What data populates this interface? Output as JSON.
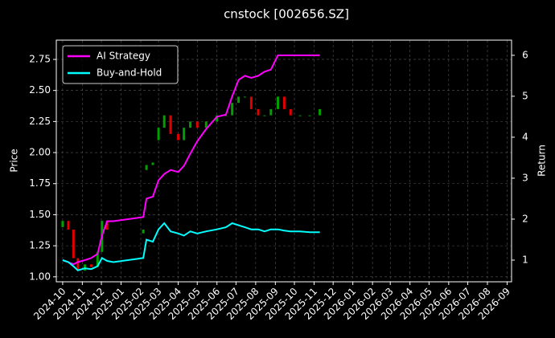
{
  "chart_data": {
    "type": "candlestick",
    "title": "cnstock [002656.SZ]",
    "ylabel": "Price",
    "y2label": "Return",
    "x": [
      "2024-10-01",
      "2024-10-10",
      "2024-10-18",
      "2024-10-25",
      "2024-11-05",
      "2024-11-15",
      "2024-11-25",
      "2024-12-02",
      "2024-12-10",
      "2024-12-20",
      "2025-02-05",
      "2025-02-10",
      "2025-02-20",
      "2025-03-01",
      "2025-03-10",
      "2025-03-20",
      "2025-04-01",
      "2025-04-10",
      "2025-04-20",
      "2025-05-01",
      "2025-05-15",
      "2025-06-01",
      "2025-06-15",
      "2025-06-25",
      "2025-07-05",
      "2025-07-15",
      "2025-07-25",
      "2025-08-05",
      "2025-08-15",
      "2025-08-25",
      "2025-09-05",
      "2025-09-15",
      "2025-09-25",
      "2025-10-10",
      "2025-10-25",
      "2025-11-10"
    ],
    "open": [
      1.4,
      1.45,
      1.38,
      1.15,
      1.05,
      1.1,
      1.08,
      1.2,
      1.45,
      null,
      1.35,
      1.86,
      1.9,
      2.1,
      2.2,
      2.3,
      2.15,
      2.1,
      2.2,
      2.25,
      2.2,
      2.25,
      2.3,
      2.3,
      2.4,
      2.45,
      2.45,
      2.35,
      2.3,
      2.3,
      2.35,
      2.45,
      2.35,
      2.3,
      2.3,
      2.3
    ],
    "close": [
      1.45,
      1.38,
      1.15,
      1.05,
      1.1,
      1.08,
      1.2,
      1.45,
      1.38,
      null,
      1.38,
      1.9,
      1.92,
      2.2,
      2.3,
      2.15,
      2.1,
      2.2,
      2.25,
      2.2,
      2.25,
      2.3,
      2.3,
      2.4,
      2.45,
      2.45,
      2.35,
      2.3,
      2.3,
      2.35,
      2.45,
      2.35,
      2.3,
      2.3,
      2.3,
      2.35
    ],
    "up_color": "#00a000",
    "down_color": "#e00000",
    "series": [
      {
        "name": "AI Strategy",
        "color": "#ff00ff",
        "axis": "y2",
        "values": [
          1.0,
          0.95,
          0.9,
          0.95,
          1.0,
          1.05,
          1.15,
          1.6,
          1.95,
          1.95,
          2.05,
          2.5,
          2.55,
          2.95,
          3.1,
          3.2,
          3.15,
          3.3,
          3.6,
          3.9,
          4.2,
          4.5,
          4.55,
          5.0,
          5.4,
          5.5,
          5.45,
          5.5,
          5.6,
          5.65,
          6.0,
          6.0,
          6.0,
          6.0,
          6.0,
          6.0
        ]
      },
      {
        "name": "Buy-and-Hold",
        "color": "#00ffff",
        "axis": "y2",
        "values": [
          1.0,
          0.95,
          0.85,
          0.75,
          0.8,
          0.78,
          0.85,
          1.05,
          0.98,
          0.95,
          1.05,
          1.5,
          1.45,
          1.75,
          1.9,
          1.7,
          1.65,
          1.6,
          1.7,
          1.65,
          1.7,
          1.75,
          1.8,
          1.9,
          1.85,
          1.8,
          1.75,
          1.75,
          1.7,
          1.75,
          1.75,
          1.72,
          1.7,
          1.7,
          1.68,
          1.68
        ]
      }
    ],
    "xlim": [
      "2024-09-21",
      "2026-09-08"
    ],
    "xticks": [
      {
        "value": "2024-10-01",
        "label": "2024-10"
      },
      {
        "value": "2024-11-01",
        "label": "2024-11"
      },
      {
        "value": "2024-12-01",
        "label": "2024-12"
      },
      {
        "value": "2025-01-01",
        "label": "2025-01"
      },
      {
        "value": "2025-02-01",
        "label": "2025-02"
      },
      {
        "value": "2025-03-01",
        "label": "2025-03"
      },
      {
        "value": "2025-04-01",
        "label": "2025-04"
      },
      {
        "value": "2025-05-01",
        "label": "2025-05"
      },
      {
        "value": "2025-06-01",
        "label": "2025-06"
      },
      {
        "value": "2025-07-01",
        "label": "2025-07"
      },
      {
        "value": "2025-08-01",
        "label": "2025-08"
      },
      {
        "value": "2025-09-01",
        "label": "2025-09"
      },
      {
        "value": "2025-10-01",
        "label": "2025-10"
      },
      {
        "value": "2025-11-01",
        "label": "2025-11"
      },
      {
        "value": "2025-12-01",
        "label": "2025-12"
      },
      {
        "value": "2026-01-01",
        "label": "2026-01"
      },
      {
        "value": "2026-02-01",
        "label": "2026-02"
      },
      {
        "value": "2026-03-01",
        "label": "2026-03"
      },
      {
        "value": "2026-04-01",
        "label": "2026-04"
      },
      {
        "value": "2026-05-01",
        "label": "2026-05"
      },
      {
        "value": "2026-06-01",
        "label": "2026-06"
      },
      {
        "value": "2026-07-01",
        "label": "2026-07"
      },
      {
        "value": "2026-08-01",
        "label": "2026-08"
      },
      {
        "value": "2026-09-01",
        "label": "2026-09"
      }
    ],
    "ylim": [
      0.96,
      2.905
    ],
    "yticks": [
      {
        "value": 1,
        "label": "1.00"
      },
      {
        "value": 1.25,
        "label": "1.25"
      },
      {
        "value": 1.5,
        "label": "1.50"
      },
      {
        "value": 1.75,
        "label": "1.75"
      },
      {
        "value": 2,
        "label": "2.00"
      },
      {
        "value": 2.25,
        "label": "2.25"
      },
      {
        "value": 2.5,
        "label": "2.50"
      },
      {
        "value": 2.75,
        "label": "2.75"
      }
    ],
    "y2lim": [
      0.47,
      6.37
    ],
    "y2ticks": [
      1,
      2,
      3,
      4,
      5,
      6
    ],
    "grid": true,
    "legend": "upper-left"
  }
}
